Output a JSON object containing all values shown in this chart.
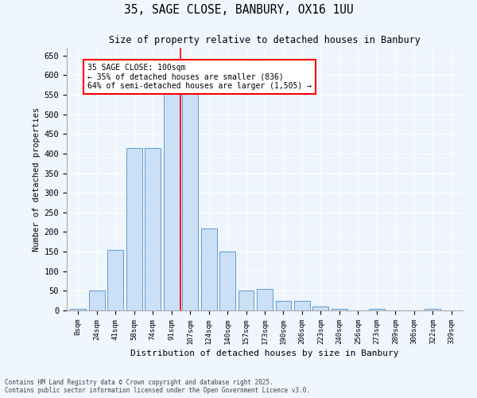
{
  "title1": "35, SAGE CLOSE, BANBURY, OX16 1UU",
  "title2": "Size of property relative to detached houses in Banbury",
  "xlabel": "Distribution of detached houses by size in Banbury",
  "ylabel": "Number of detached properties",
  "categories": [
    "8sqm",
    "24sqm",
    "41sqm",
    "58sqm",
    "74sqm",
    "91sqm",
    "107sqm",
    "124sqm",
    "140sqm",
    "157sqm",
    "173sqm",
    "190sqm",
    "206sqm",
    "223sqm",
    "240sqm",
    "256sqm",
    "273sqm",
    "289sqm",
    "306sqm",
    "322sqm",
    "339sqm"
  ],
  "values": [
    5,
    50,
    155,
    415,
    415,
    610,
    580,
    210,
    150,
    50,
    55,
    25,
    25,
    10,
    5,
    0,
    5,
    0,
    0,
    5,
    0
  ],
  "bar_color": "#cce0f5",
  "bar_edge_color": "#5b9bd5",
  "vline_x_index": 6,
  "vline_color": "red",
  "annotation_text": "35 SAGE CLOSE: 100sqm\n← 35% of detached houses are smaller (836)\n64% of semi-detached houses are larger (1,505) →",
  "annotation_box_color": "white",
  "annotation_box_edge": "red",
  "ylim": [
    0,
    670
  ],
  "yticks": [
    0,
    50,
    100,
    150,
    200,
    250,
    300,
    350,
    400,
    450,
    500,
    550,
    600,
    650
  ],
  "footer1": "Contains HM Land Registry data © Crown copyright and database right 2025.",
  "footer2": "Contains public sector information licensed under the Open Government Licence v3.0.",
  "bg_color": "#f0f6fd",
  "plot_bg_color": "#eef5fc",
  "grid_color": "#ffffff",
  "spine_color": "#aaaaaa"
}
